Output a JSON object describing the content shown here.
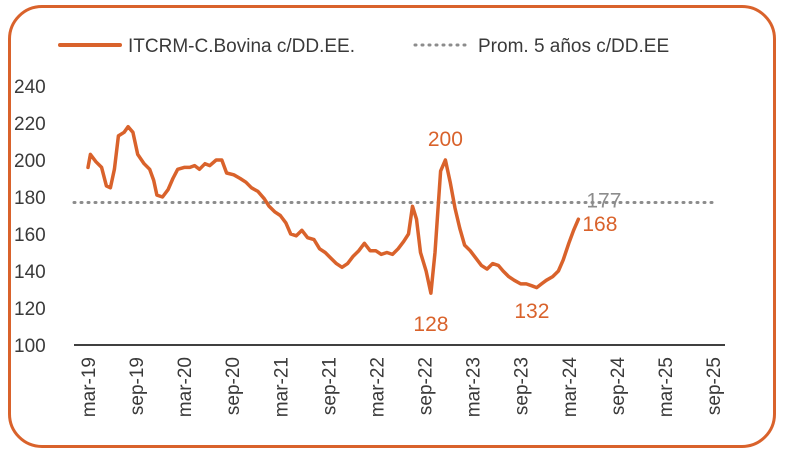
{
  "chart_data": {
    "type": "line",
    "title": "",
    "xlabel": "",
    "ylabel": "",
    "ylim": [
      100,
      240
    ],
    "yticks": [
      "240",
      "220",
      "200",
      "180",
      "160",
      "140",
      "120",
      "100"
    ],
    "x_ticks": [
      "mar-19",
      "sep-19",
      "mar-20",
      "sep-20",
      "mar-21",
      "sep-21",
      "mar-22",
      "sep-22",
      "mar-23",
      "sep-23",
      "mar-24",
      "sep-24",
      "mar-25",
      "sep-25"
    ],
    "series": [
      {
        "name": "ITCRM-C.Bovina c/DD.EE.",
        "color": "#d9622b",
        "style": "solid",
        "points": [
          [
            0,
            196
          ],
          [
            0.3,
            203
          ],
          [
            1,
            199
          ],
          [
            1.7,
            196
          ],
          [
            2.3,
            186
          ],
          [
            2.8,
            185
          ],
          [
            3.3,
            195
          ],
          [
            3.8,
            213
          ],
          [
            4.5,
            215
          ],
          [
            5,
            218
          ],
          [
            5.6,
            215
          ],
          [
            6.2,
            203
          ],
          [
            7,
            198
          ],
          [
            7.7,
            195
          ],
          [
            8.2,
            189
          ],
          [
            8.6,
            181
          ],
          [
            9.3,
            180
          ],
          [
            10,
            184
          ],
          [
            10.6,
            190
          ],
          [
            11.2,
            195
          ],
          [
            12,
            196
          ],
          [
            12.7,
            196
          ],
          [
            13.3,
            197
          ],
          [
            13.9,
            195
          ],
          [
            14.6,
            198
          ],
          [
            15.2,
            197
          ],
          [
            16,
            200
          ],
          [
            16.7,
            200
          ],
          [
            17.3,
            193
          ],
          [
            18.2,
            192
          ],
          [
            19,
            190
          ],
          [
            19.7,
            188
          ],
          [
            20.4,
            185
          ],
          [
            21.2,
            183
          ],
          [
            22,
            179
          ],
          [
            22.6,
            175
          ],
          [
            23.3,
            172
          ],
          [
            24,
            170
          ],
          [
            24.7,
            166
          ],
          [
            25.3,
            160
          ],
          [
            26,
            159
          ],
          [
            26.7,
            162
          ],
          [
            27.4,
            158
          ],
          [
            28.2,
            157
          ],
          [
            28.9,
            152
          ],
          [
            29.6,
            150
          ],
          [
            30.3,
            147
          ],
          [
            31,
            144
          ],
          [
            31.7,
            142
          ],
          [
            32.4,
            144
          ],
          [
            33.1,
            148
          ],
          [
            33.8,
            151
          ],
          [
            34.5,
            155
          ],
          [
            35.2,
            151
          ],
          [
            35.9,
            151
          ],
          [
            36.6,
            149
          ],
          [
            37.3,
            150
          ],
          [
            38,
            149
          ],
          [
            38.7,
            152
          ],
          [
            39.4,
            156
          ],
          [
            40,
            160
          ],
          [
            40.5,
            175
          ],
          [
            41,
            168
          ],
          [
            41.5,
            150
          ],
          [
            42.2,
            140
          ],
          [
            42.8,
            128
          ],
          [
            43.3,
            150
          ],
          [
            44,
            194
          ],
          [
            44.6,
            200
          ],
          [
            45.2,
            188
          ],
          [
            45.8,
            174
          ],
          [
            46.4,
            163
          ],
          [
            47,
            154
          ],
          [
            47.7,
            151
          ],
          [
            48.4,
            147
          ],
          [
            49.1,
            143
          ],
          [
            49.8,
            141
          ],
          [
            50.5,
            144
          ],
          [
            51.2,
            143
          ],
          [
            51.8,
            140
          ],
          [
            52.5,
            137
          ],
          [
            53.2,
            135
          ],
          [
            54,
            133
          ],
          [
            54.7,
            133
          ],
          [
            55.4,
            132
          ],
          [
            56,
            131
          ],
          [
            56.6,
            133
          ],
          [
            57.2,
            135
          ],
          [
            58,
            137
          ],
          [
            58.7,
            140
          ],
          [
            59.3,
            146
          ],
          [
            60,
            155
          ],
          [
            60.6,
            162
          ],
          [
            61.2,
            168
          ]
        ]
      },
      {
        "name": "Prom. 5 años c/DD.EE",
        "color": "#8c8c8c",
        "style": "dotted",
        "value": 177
      }
    ],
    "annotations": [
      {
        "text": "200",
        "x": 44.6,
        "y": 200,
        "color": "#d9622b"
      },
      {
        "text": "128",
        "x": 42.8,
        "y": 128,
        "color": "#d9622b"
      },
      {
        "text": "132",
        "x": 55.4,
        "y": 132,
        "color": "#d9622b"
      },
      {
        "text": "177",
        "x": 61.2,
        "y": 177,
        "color": "#8c8c8c"
      },
      {
        "text": "168",
        "x": 61.2,
        "y": 168,
        "color": "#d9622b"
      }
    ],
    "legend": "top",
    "grid": false
  }
}
